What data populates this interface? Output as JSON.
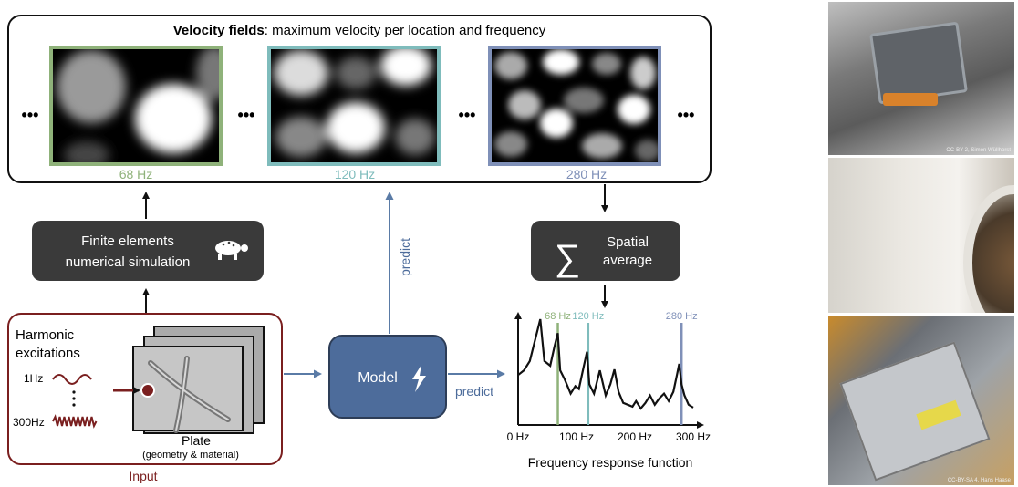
{
  "velocity_panel": {
    "title_bold": "Velocity fields",
    "title_rest": ": maximum velocity per location and frequency",
    "ellipsis": "•••",
    "fields": [
      {
        "label": "68 Hz",
        "color": "#8fb27a"
      },
      {
        "label": "120 Hz",
        "color": "#7fbcbc"
      },
      {
        "label": "280 Hz",
        "color": "#7f90b8"
      }
    ]
  },
  "fem_box": {
    "line1": "Finite elements",
    "line2": "numerical simulation",
    "icon": "turtle-icon"
  },
  "spatial_box": {
    "line1": "Spatial",
    "line2": "average",
    "symbol": "∑"
  },
  "model_box": {
    "label": "Model",
    "icon": "lightning-icon"
  },
  "predict_vertical": "predict",
  "predict_horizontal": "predict",
  "input_panel": {
    "title_line1": "Harmonic",
    "title_line2": "excitations",
    "low_freq": "1Hz",
    "high_freq": "300Hz",
    "plate_label": "Plate",
    "plate_sub": "(geometry & material)",
    "input_label": "Input",
    "accent_color": "#7a1f1f"
  },
  "frf": {
    "title": "Frequency response function",
    "markers": [
      {
        "label": "68 Hz",
        "freq": 68,
        "color": "#8fb27a"
      },
      {
        "label": "120 Hz",
        "freq": 120,
        "color": "#7fbcbc"
      },
      {
        "label": "280 Hz",
        "freq": 280,
        "color": "#7f90b8"
      }
    ]
  },
  "chart_data": {
    "type": "line",
    "title": "Frequency response function",
    "xlabel": "",
    "ylabel": "",
    "xlim": [
      0,
      300
    ],
    "x_ticks": [
      "0 Hz",
      "100 Hz",
      "200 Hz",
      "300 Hz"
    ],
    "x": [
      0,
      10,
      20,
      30,
      38,
      45,
      55,
      62,
      68,
      72,
      80,
      90,
      98,
      104,
      112,
      118,
      122,
      130,
      140,
      150,
      158,
      165,
      172,
      180,
      188,
      196,
      202,
      210,
      218,
      226,
      234,
      242,
      250,
      258,
      266,
      272,
      276,
      280,
      285,
      292,
      300
    ],
    "series": [
      {
        "values": [
          0.4,
          0.45,
          0.55,
          0.8,
          1.0,
          0.55,
          0.5,
          0.7,
          0.85,
          0.45,
          0.35,
          0.2,
          0.28,
          0.25,
          0.48,
          0.65,
          0.3,
          0.2,
          0.45,
          0.18,
          0.3,
          0.46,
          0.22,
          0.1,
          0.08,
          0.06,
          0.12,
          0.04,
          0.1,
          0.18,
          0.08,
          0.15,
          0.2,
          0.12,
          0.22,
          0.4,
          0.52,
          0.3,
          0.18,
          0.08,
          0.05
        ]
      }
    ]
  },
  "photos": [
    {
      "name": "transmission-photo",
      "credit": "CC-BY 2, Simon Wüllhorst"
    },
    {
      "name": "washing-machine-photo",
      "credit": ""
    },
    {
      "name": "computer-case-photo",
      "credit": "CC-BY-SA 4, Hans Haase"
    }
  ]
}
